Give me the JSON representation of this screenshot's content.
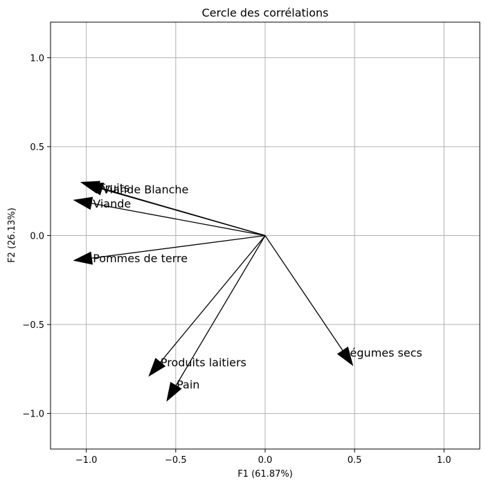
{
  "chart_data": {
    "type": "scatter",
    "title": "Cercle des corrélations",
    "xlabel": "F1 (61.87%)",
    "ylabel": "F2 (26.13%)",
    "xlim": [
      -1.2,
      1.2
    ],
    "ylim": [
      -1.2,
      1.2
    ],
    "xticks": [
      -1.0,
      -0.5,
      0.0,
      0.5,
      1.0
    ],
    "yticks": [
      -1.0,
      -0.5,
      0.0,
      0.5,
      1.0
    ],
    "xtick_labels": [
      "−1.0",
      "−0.5",
      "0.0",
      "0.5",
      "1.0"
    ],
    "ytick_labels": [
      "−1.0",
      "−0.5",
      "0.0",
      "0.5",
      "1.0"
    ],
    "grid": true,
    "vectors": [
      {
        "name": "Fruits",
        "x": -1.03,
        "y": 0.3
      },
      {
        "name": "Viande Blanche",
        "x": -1.01,
        "y": 0.29
      },
      {
        "name": "Viande",
        "x": -1.07,
        "y": 0.2
      },
      {
        "name": "Pommes de terre",
        "x": -1.07,
        "y": -0.14
      },
      {
        "name": "Légumes secs",
        "x": 0.49,
        "y": -0.73
      },
      {
        "name": "Produits laitiers",
        "x": -0.65,
        "y": -0.79
      },
      {
        "name": "Pain",
        "x": -0.55,
        "y": -0.93
      }
    ]
  }
}
